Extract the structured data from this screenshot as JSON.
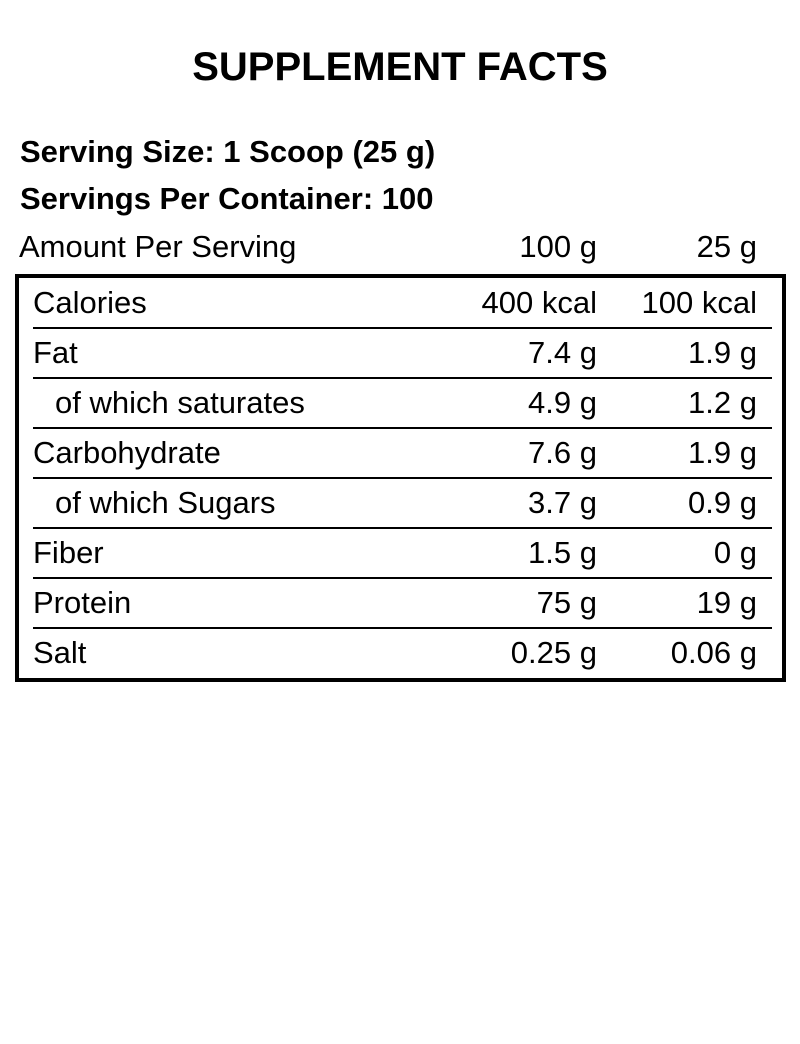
{
  "colors": {
    "text": "#000000",
    "background": "#ffffff",
    "border": "#000000"
  },
  "title": "SUPPLEMENT FACTS",
  "serving": {
    "serving_size": "Serving Size: 1 Scoop (25 g)",
    "servings_per_container": "Servings Per Container: 100"
  },
  "columns": {
    "amount_label": "Amount Per Serving",
    "col_100g": "100 g",
    "col_25g": "25 g"
  },
  "nutrition_table": {
    "rows": [
      {
        "label": "Calories",
        "per_100g": "400 kcal",
        "per_25g": "100 kcal",
        "indent": false
      },
      {
        "label": "Fat",
        "per_100g": "7.4 g",
        "per_25g": "1.9 g",
        "indent": false
      },
      {
        "label": "of which saturates",
        "per_100g": "4.9 g",
        "per_25g": "1.2 g",
        "indent": true
      },
      {
        "label": "Carbohydrate",
        "per_100g": "7.6 g",
        "per_25g": "1.9 g",
        "indent": false
      },
      {
        "label": "of which Sugars",
        "per_100g": "3.7 g",
        "per_25g": "0.9 g",
        "indent": true
      },
      {
        "label": "Fiber",
        "per_100g": "1.5 g",
        "per_25g": "0 g",
        "indent": false
      },
      {
        "label": "Protein",
        "per_100g": "75 g",
        "per_25g": "19 g",
        "indent": false
      },
      {
        "label": "Salt",
        "per_100g": "0.25 g",
        "per_25g": "0.06 g",
        "indent": false
      }
    ]
  }
}
